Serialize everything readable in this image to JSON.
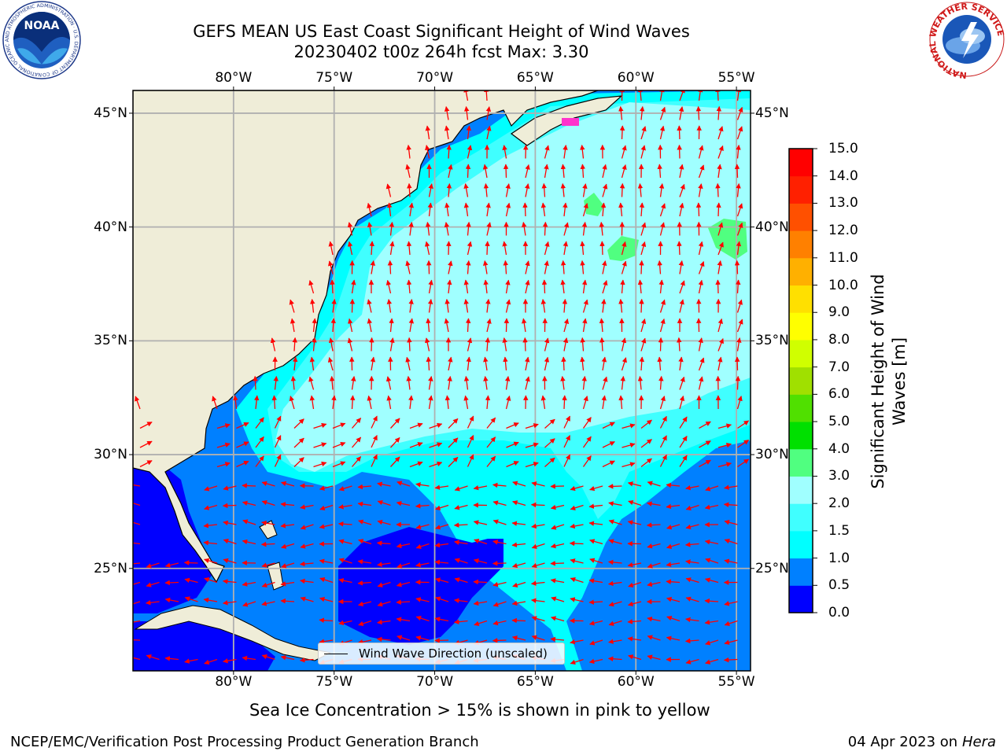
{
  "title": {
    "line1": "GEFS MEAN US East Coast Significant Height of Wind Waves",
    "line2": "20230402 t00z 264h fcst   Max: 3.30"
  },
  "axes": {
    "lon_ticks": [
      "80°W",
      "75°W",
      "70°W",
      "65°W",
      "60°W",
      "55°W"
    ],
    "lat_ticks": [
      "45°N",
      "40°N",
      "35°N",
      "30°N",
      "25°N"
    ],
    "lon_range": [
      -85,
      -54.3
    ],
    "lat_range": [
      20.5,
      46
    ]
  },
  "colorbar": {
    "label": "Significant Height of Wind Waves [m]",
    "label_line1": "Significant Height of Wind",
    "label_line2": "Waves [m]",
    "ticks": [
      "0.0",
      "0.5",
      "1.0",
      "1.5",
      "2.0",
      "3.0",
      "4.0",
      "5.0",
      "6.0",
      "7.0",
      "8.0",
      "9.0",
      "10.0",
      "11.0",
      "12.0",
      "13.0",
      "14.0",
      "15.0"
    ],
    "colors": [
      "#0000ff",
      "#0080ff",
      "#00ffff",
      "#40ffff",
      "#a0ffff",
      "#50ff80",
      "#00e000",
      "#50e000",
      "#a0e000",
      "#d0ff00",
      "#ffff00",
      "#ffe000",
      "#ffb000",
      "#ff8000",
      "#ff5000",
      "#ff2000",
      "#ff0000"
    ]
  },
  "legend": {
    "label": "Wind Wave Direction (unscaled)"
  },
  "note": "Sea Ice Concentration > 15% is shown in pink to yellow",
  "footer": {
    "left": "NCEP/EMC/Verification Post Processing Product Generation Branch",
    "date": "04 Apr 2023 on ",
    "machine": "Hera"
  },
  "colors": {
    "land": "#efedd8",
    "arrow": "#ff0000",
    "grid": "#b0b0b0"
  },
  "logos": {
    "left": "NOAA",
    "left_ring": "NATIONAL OCEANIC AND ATMOSPHERIC ADMINISTRATION · U.S. DEPARTMENT OF COMMERCE",
    "right_ring": "NATIONAL WEATHER SERVICE"
  }
}
